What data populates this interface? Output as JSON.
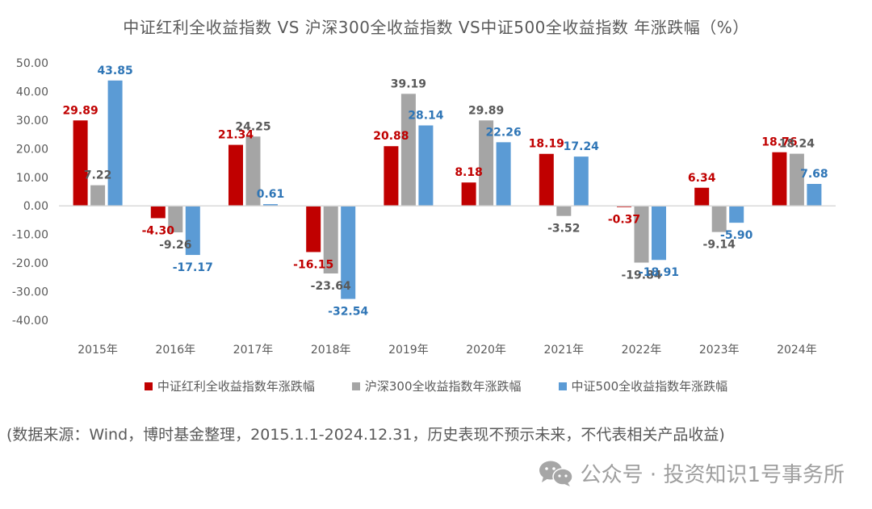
{
  "chart_data": {
    "type": "bar",
    "title": "中证红利全收益指数 VS 沪深300全收益指数 VS中证500全收益指数 年涨跌幅（%）",
    "xlabel": "",
    "ylabel": "",
    "categories": [
      "2015年",
      "2016年",
      "2017年",
      "2018年",
      "2019年",
      "2020年",
      "2021年",
      "2022年",
      "2023年",
      "2024年"
    ],
    "series": [
      {
        "name": "中证红利全收益指数年涨跌幅",
        "color": "#c00000",
        "values": [
          29.89,
          -4.3,
          21.34,
          -16.15,
          20.88,
          8.18,
          18.19,
          -0.37,
          6.34,
          18.76
        ],
        "labels": [
          "29.89",
          "-4.30",
          "21.34",
          "-16.15",
          "20.88",
          "8.18",
          "18.19",
          "-0.37",
          "6.34",
          "18.76"
        ]
      },
      {
        "name": "沪深300全收益指数年涨跌幅",
        "color": "#a5a5a5",
        "label_color": "#595959",
        "values": [
          7.22,
          -9.26,
          24.25,
          -23.64,
          39.19,
          29.89,
          -3.52,
          -19.84,
          -9.14,
          18.24
        ],
        "labels": [
          "7.22",
          "-9.26",
          "24.25",
          "-23.64",
          "39.19",
          "29.89",
          "-3.52",
          "-19.84",
          "-9.14",
          "18.24"
        ]
      },
      {
        "name": "中证500全收益指数年涨跌幅",
        "color": "#5b9bd5",
        "label_color": "#2e75b6",
        "values": [
          43.85,
          -17.17,
          0.61,
          -32.54,
          28.14,
          22.26,
          17.24,
          -18.91,
          -5.9,
          7.68
        ],
        "labels": [
          "43.85",
          "-17.17",
          "0.61",
          "-32.54",
          "28.14",
          "22.26",
          "17.24",
          "-18.91",
          "-5.90",
          "7.68"
        ]
      }
    ],
    "ylim": [
      -40,
      50
    ],
    "yticks": [
      50,
      40,
      30,
      20,
      10,
      0,
      -10,
      -20,
      -30,
      -40
    ],
    "ytick_labels": [
      "50.00",
      "40.00",
      "30.00",
      "20.00",
      "10.00",
      "0.00",
      "-10.00",
      "-20.00",
      "-30.00",
      "-40.00"
    ],
    "grid": false,
    "legend_position": "bottom"
  },
  "source_note": "(数据来源：Wind，博时基金整理，2015.1.1-2024.12.31，历史表现不预示未来，不代表相关产品收益)",
  "watermark": {
    "icon": "wechat-icon",
    "text": "公众号 · 投资知识1号事务所"
  }
}
